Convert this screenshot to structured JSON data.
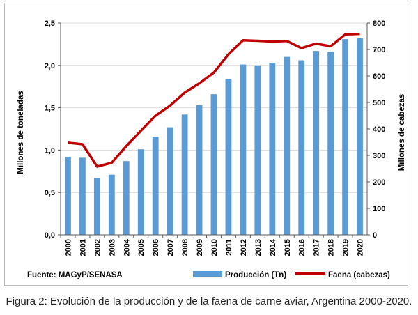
{
  "chart_data": {
    "type": "bar",
    "x": [
      "2000",
      "2001",
      "2002",
      "2003",
      "2004",
      "2005",
      "2006",
      "2007",
      "2008",
      "2009",
      "2010",
      "2011",
      "2012",
      "2013",
      "2014",
      "2015",
      "2016",
      "2017",
      "2018",
      "2019",
      "2020"
    ],
    "series": [
      {
        "name": "Producción (Tn)",
        "type": "bar",
        "axis": "left",
        "color": "#5b9bd5",
        "values": [
          0.92,
          0.91,
          0.67,
          0.71,
          0.87,
          1.01,
          1.16,
          1.27,
          1.42,
          1.53,
          1.66,
          1.84,
          2.01,
          2.0,
          2.03,
          2.1,
          2.06,
          2.17,
          2.16,
          2.31,
          2.32
        ]
      },
      {
        "name": "Faena (cabezas)",
        "type": "line",
        "axis": "right",
        "color": "#c00000",
        "values": [
          348,
          342,
          258,
          272,
          335,
          393,
          450,
          488,
          537,
          572,
          613,
          682,
          735,
          733,
          730,
          732,
          705,
          722,
          712,
          757,
          759
        ]
      }
    ],
    "ylabel_left": "Millones de toneladas",
    "ylabel_right": "Millones de cabezas",
    "ylim_left": [
      0,
      2.5
    ],
    "ylim_right": [
      0,
      800
    ],
    "yticks_left": [
      "0,0",
      "0,5",
      "1,0",
      "1,5",
      "2,0",
      "2,5"
    ],
    "yticks_right": [
      "0",
      "100",
      "200",
      "300",
      "400",
      "500",
      "600",
      "700",
      "800"
    ],
    "grid": true,
    "legend_position": "bottom",
    "source_note": "Fuente: MAGyP/SENASA"
  },
  "caption": "Figura 2: Evolución de la producción y de la faena de carne aviar, Argentina 2000-2020."
}
